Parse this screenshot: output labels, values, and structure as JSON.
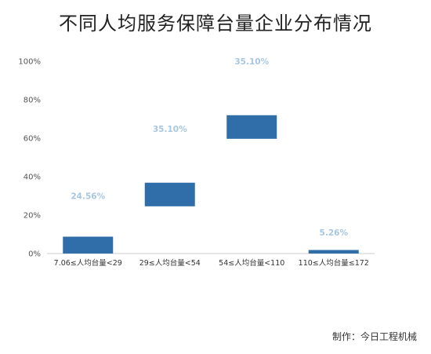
{
  "chart_data": {
    "type": "bar",
    "subtype": "waterfall",
    "title": "不同人均服务保障台量企业分布情况",
    "xlabel": "",
    "ylabel": "",
    "ylim": [
      0,
      100
    ],
    "yticks": [
      "0%",
      "20%",
      "40%",
      "60%",
      "80%",
      "100%"
    ],
    "categories": [
      "7.06≤人均台量<29",
      "29≤人均台量<54",
      "54≤人均台量<110",
      "110≤人均台量≤172"
    ],
    "values": [
      8.77,
      12.27,
      12.27,
      1.84
    ],
    "bar_bottoms": [
      0,
      24.56,
      59.66,
      0
    ],
    "bar_tops": [
      8.77,
      36.83,
      71.93,
      1.84
    ],
    "data_labels": [
      "24.56%",
      "35.10%",
      "35.10%",
      "5.26%"
    ],
    "label_positions": [
      30,
      65,
      100,
      11
    ],
    "bar_color": "#2f6ea8",
    "label_color": "#a8c6e0",
    "grid": false,
    "legend": "none"
  },
  "credit": "制作：今日工程机械"
}
